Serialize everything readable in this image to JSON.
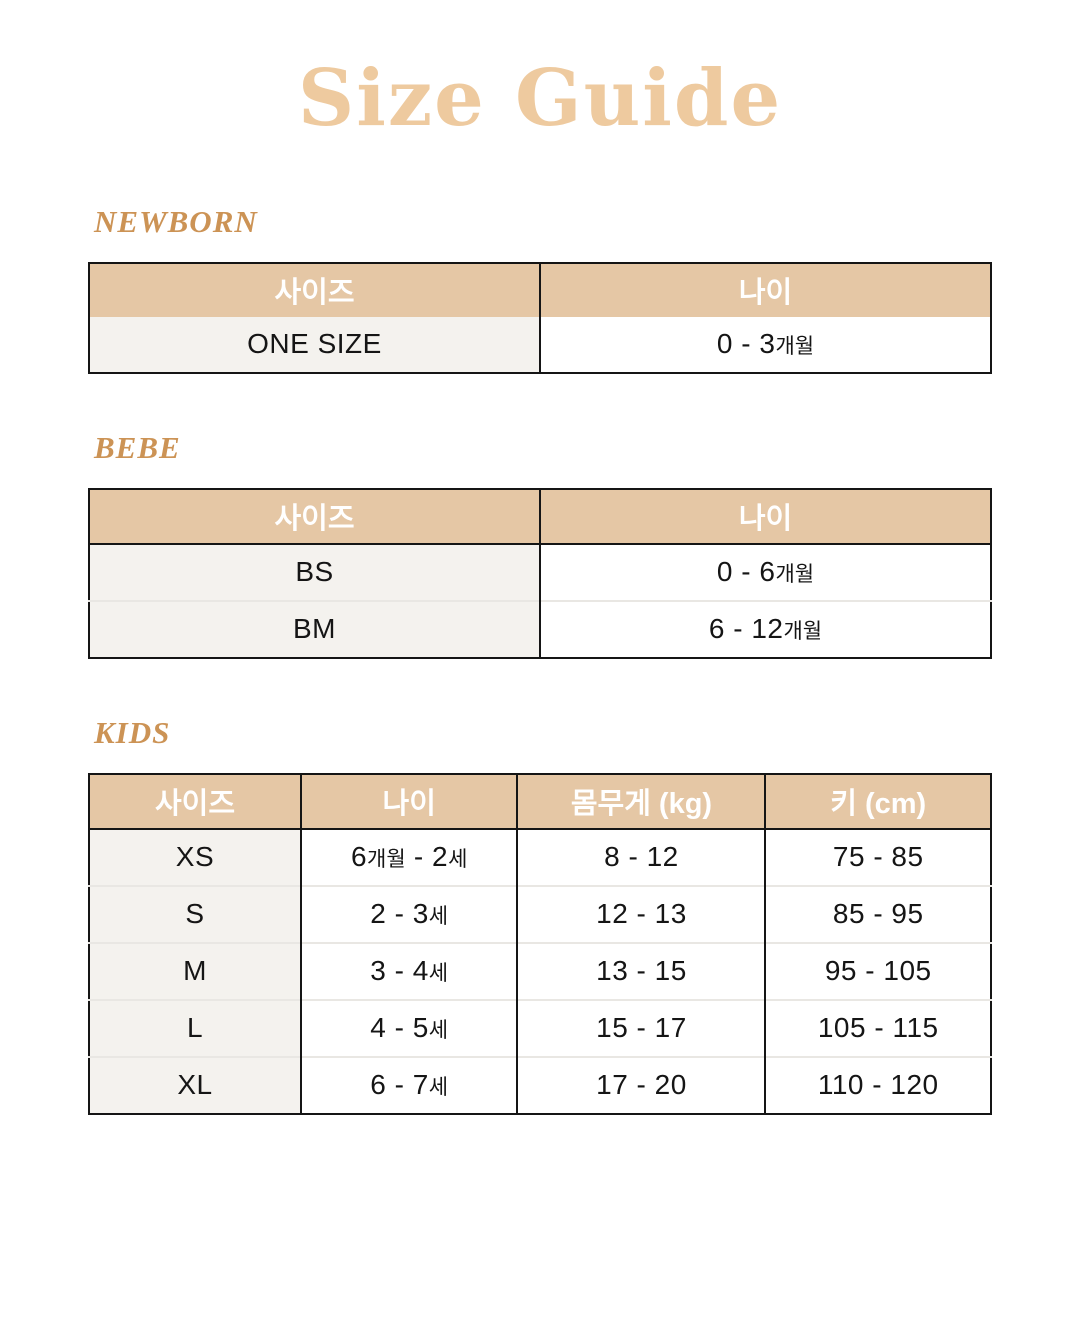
{
  "page": {
    "title": "Size Guide"
  },
  "colors": {
    "title_text": "#eeca9f",
    "section_heading_text": "#cc9355",
    "table_header_bg": "#e5c7a5",
    "table_header_text": "#ffffff",
    "first_column_bg": "#f4f2ee",
    "border_dark": "#151515",
    "row_divider": "#e9e7e3"
  },
  "sections": [
    {
      "heading": "NEWBORN",
      "table": {
        "columns": [
          "사이즈",
          "나이"
        ],
        "rows": [
          [
            "ONE SIZE",
            "0 - 3개월"
          ]
        ]
      }
    },
    {
      "heading": "BEBE",
      "table": {
        "columns": [
          "사이즈",
          "나이"
        ],
        "rows": [
          [
            "BS",
            "0 - 6개월"
          ],
          [
            "BM",
            "6 - 12개월"
          ]
        ]
      }
    },
    {
      "heading": "KIDS",
      "table": {
        "columns": [
          "사이즈",
          "나이",
          "몸무게 (kg)",
          "키 (cm)"
        ],
        "rows": [
          [
            "XS",
            "6개월 - 2세",
            "8 - 12",
            "75 - 85"
          ],
          [
            "S",
            "2 - 3세",
            "12 - 13",
            "85 - 95"
          ],
          [
            "M",
            "3 - 4세",
            "13 - 15",
            "95 - 105"
          ],
          [
            "L",
            "4 - 5세",
            "15 - 17",
            "105 - 115"
          ],
          [
            "XL",
            "6 - 7세",
            "17 - 20",
            "110 - 120"
          ]
        ]
      }
    }
  ]
}
